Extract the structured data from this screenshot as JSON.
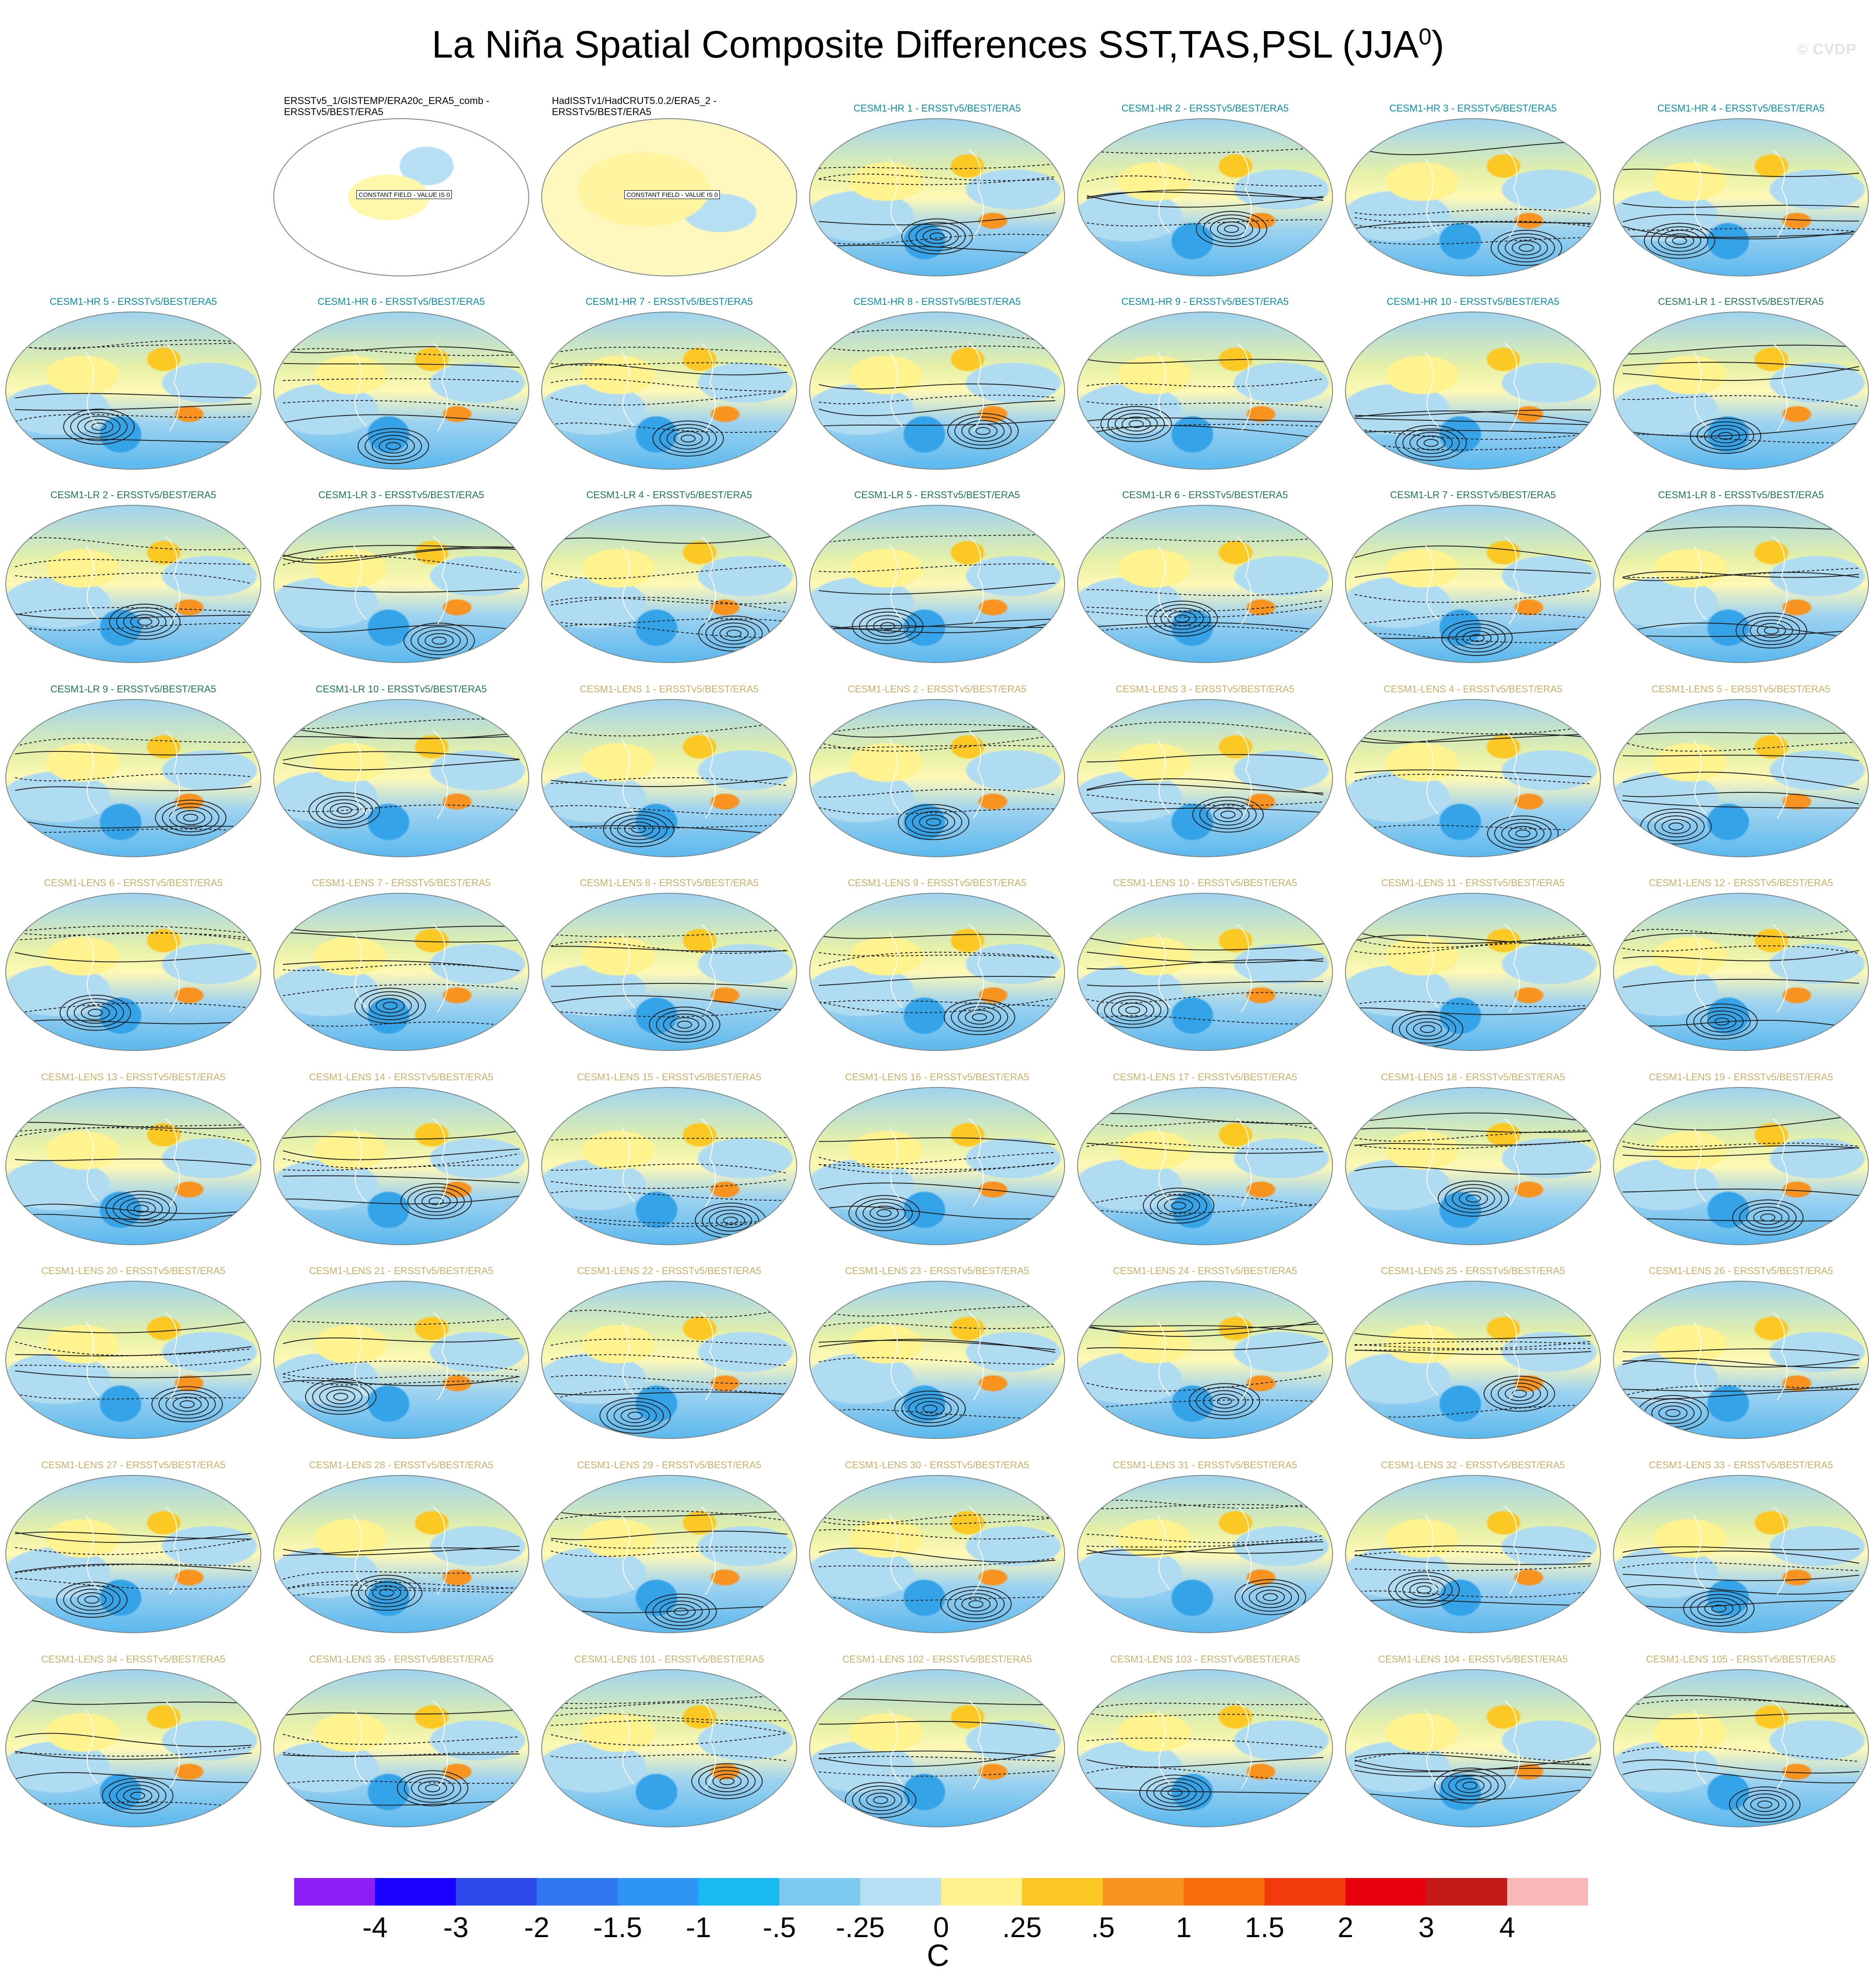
{
  "title": "La Niña Spatial Composite Differences SST,TAS,PSL (JJA",
  "title_superscript": "0",
  "title_close": ")",
  "watermark": "© CVDP",
  "observations": [
    {
      "label": "ERSSTv5_1/GISTEMP/ERA20c_ERA5_comb - ERSSTv5/BEST/ERA5",
      "note": "CONSTANT FIELD - VALUE IS 0"
    },
    {
      "label": "HadISSTv1/HadCRUT5.0.2/ERA5_2 - ERSSTv5/BEST/ERA5",
      "note": "CONSTANT FIELD - VALUE IS 0"
    }
  ],
  "panels": [
    {
      "label": "CESM1-HR 1 - ERSSTv5/BEST/ERA5",
      "group": "hr"
    },
    {
      "label": "CESM1-HR 2 - ERSSTv5/BEST/ERA5",
      "group": "hr"
    },
    {
      "label": "CESM1-HR 3 - ERSSTv5/BEST/ERA5",
      "group": "hr"
    },
    {
      "label": "CESM1-HR 4 - ERSSTv5/BEST/ERA5",
      "group": "hr"
    },
    {
      "label": "CESM1-HR 5 - ERSSTv5/BEST/ERA5",
      "group": "hr"
    },
    {
      "label": "CESM1-HR 6 - ERSSTv5/BEST/ERA5",
      "group": "hr"
    },
    {
      "label": "CESM1-HR 7 - ERSSTv5/BEST/ERA5",
      "group": "hr"
    },
    {
      "label": "CESM1-HR 8 - ERSSTv5/BEST/ERA5",
      "group": "hr"
    },
    {
      "label": "CESM1-HR 9 - ERSSTv5/BEST/ERA5",
      "group": "hr"
    },
    {
      "label": "CESM1-HR 10 - ERSSTv5/BEST/ERA5",
      "group": "hr"
    },
    {
      "label": "CESM1-LR 1 - ERSSTv5/BEST/ERA5",
      "group": "lr"
    },
    {
      "label": "CESM1-LR 2 - ERSSTv5/BEST/ERA5",
      "group": "lr"
    },
    {
      "label": "CESM1-LR 3 - ERSSTv5/BEST/ERA5",
      "group": "lr"
    },
    {
      "label": "CESM1-LR 4 - ERSSTv5/BEST/ERA5",
      "group": "lr"
    },
    {
      "label": "CESM1-LR 5 - ERSSTv5/BEST/ERA5",
      "group": "lr"
    },
    {
      "label": "CESM1-LR 6 - ERSSTv5/BEST/ERA5",
      "group": "lr"
    },
    {
      "label": "CESM1-LR 7 - ERSSTv5/BEST/ERA5",
      "group": "lr"
    },
    {
      "label": "CESM1-LR 8 - ERSSTv5/BEST/ERA5",
      "group": "lr"
    },
    {
      "label": "CESM1-LR 9 - ERSSTv5/BEST/ERA5",
      "group": "lr"
    },
    {
      "label": "CESM1-LR 10 - ERSSTv5/BEST/ERA5",
      "group": "lr"
    },
    {
      "label": "CESM1-LENS 1 - ERSSTv5/BEST/ERA5",
      "group": "lens"
    },
    {
      "label": "CESM1-LENS 2 - ERSSTv5/BEST/ERA5",
      "group": "lens"
    },
    {
      "label": "CESM1-LENS 3 - ERSSTv5/BEST/ERA5",
      "group": "lens"
    },
    {
      "label": "CESM1-LENS 4 - ERSSTv5/BEST/ERA5",
      "group": "lens"
    },
    {
      "label": "CESM1-LENS 5 - ERSSTv5/BEST/ERA5",
      "group": "lens"
    },
    {
      "label": "CESM1-LENS 6 - ERSSTv5/BEST/ERA5",
      "group": "lens"
    },
    {
      "label": "CESM1-LENS 7 - ERSSTv5/BEST/ERA5",
      "group": "lens"
    },
    {
      "label": "CESM1-LENS 8 - ERSSTv5/BEST/ERA5",
      "group": "lens"
    },
    {
      "label": "CESM1-LENS 9 - ERSSTv5/BEST/ERA5",
      "group": "lens"
    },
    {
      "label": "CESM1-LENS 10 - ERSSTv5/BEST/ERA5",
      "group": "lens"
    },
    {
      "label": "CESM1-LENS 11 - ERSSTv5/BEST/ERA5",
      "group": "lens"
    },
    {
      "label": "CESM1-LENS 12 - ERSSTv5/BEST/ERA5",
      "group": "lens"
    },
    {
      "label": "CESM1-LENS 13 - ERSSTv5/BEST/ERA5",
      "group": "lens"
    },
    {
      "label": "CESM1-LENS 14 - ERSSTv5/BEST/ERA5",
      "group": "lens"
    },
    {
      "label": "CESM1-LENS 15 - ERSSTv5/BEST/ERA5",
      "group": "lens"
    },
    {
      "label": "CESM1-LENS 16 - ERSSTv5/BEST/ERA5",
      "group": "lens"
    },
    {
      "label": "CESM1-LENS 17 - ERSSTv5/BEST/ERA5",
      "group": "lens"
    },
    {
      "label": "CESM1-LENS 18 - ERSSTv5/BEST/ERA5",
      "group": "lens"
    },
    {
      "label": "CESM1-LENS 19 - ERSSTv5/BEST/ERA5",
      "group": "lens"
    },
    {
      "label": "CESM1-LENS 20 - ERSSTv5/BEST/ERA5",
      "group": "lens"
    },
    {
      "label": "CESM1-LENS 21 - ERSSTv5/BEST/ERA5",
      "group": "lens"
    },
    {
      "label": "CESM1-LENS 22 - ERSSTv5/BEST/ERA5",
      "group": "lens"
    },
    {
      "label": "CESM1-LENS 23 - ERSSTv5/BEST/ERA5",
      "group": "lens"
    },
    {
      "label": "CESM1-LENS 24 - ERSSTv5/BEST/ERA5",
      "group": "lens"
    },
    {
      "label": "CESM1-LENS 25 - ERSSTv5/BEST/ERA5",
      "group": "lens"
    },
    {
      "label": "CESM1-LENS 26 - ERSSTv5/BEST/ERA5",
      "group": "lens"
    },
    {
      "label": "CESM1-LENS 27 - ERSSTv5/BEST/ERA5",
      "group": "lens"
    },
    {
      "label": "CESM1-LENS 28 - ERSSTv5/BEST/ERA5",
      "group": "lens"
    },
    {
      "label": "CESM1-LENS 29 - ERSSTv5/BEST/ERA5",
      "group": "lens"
    },
    {
      "label": "CESM1-LENS 30 - ERSSTv5/BEST/ERA5",
      "group": "lens"
    },
    {
      "label": "CESM1-LENS 31 - ERSSTv5/BEST/ERA5",
      "group": "lens"
    },
    {
      "label": "CESM1-LENS 32 - ERSSTv5/BEST/ERA5",
      "group": "lens"
    },
    {
      "label": "CESM1-LENS 33 - ERSSTv5/BEST/ERA5",
      "group": "lens"
    },
    {
      "label": "CESM1-LENS 34 - ERSSTv5/BEST/ERA5",
      "group": "lens"
    },
    {
      "label": "CESM1-LENS 35 - ERSSTv5/BEST/ERA5",
      "group": "lens"
    },
    {
      "label": "CESM1-LENS 101 - ERSSTv5/BEST/ERA5",
      "group": "lens"
    },
    {
      "label": "CESM1-LENS 102 - ERSSTv5/BEST/ERA5",
      "group": "lens"
    },
    {
      "label": "CESM1-LENS 103 - ERSSTv5/BEST/ERA5",
      "group": "lens"
    },
    {
      "label": "CESM1-LENS 104 - ERSSTv5/BEST/ERA5",
      "group": "lens"
    },
    {
      "label": "CESM1-LENS 105 - ERSSTv5/BEST/ERA5",
      "group": "lens"
    }
  ],
  "colorbar": {
    "labels": [
      "-4",
      "-3",
      "-2",
      "-1.5",
      "-1",
      "-.5",
      "-.25",
      "0",
      ".25",
      ".5",
      "1",
      "1.5",
      "2",
      "3",
      "4"
    ],
    "colors": [
      "#8b1ff5",
      "#1a00ff",
      "#2b4ae8",
      "#2f78f0",
      "#2e95f3",
      "#19b9f2",
      "#7ccaf0",
      "#b7dff3",
      "#fff38f",
      "#fbc824",
      "#f7931e",
      "#f76d0a",
      "#f23a0c",
      "#e6000b",
      "#c41a1a",
      "#f9b7b7"
    ],
    "units": "C"
  },
  "colors": {
    "hr_label": "#0a8fa6",
    "lr_label": "#1f7a4a",
    "lens_label": "#c9b06a"
  }
}
